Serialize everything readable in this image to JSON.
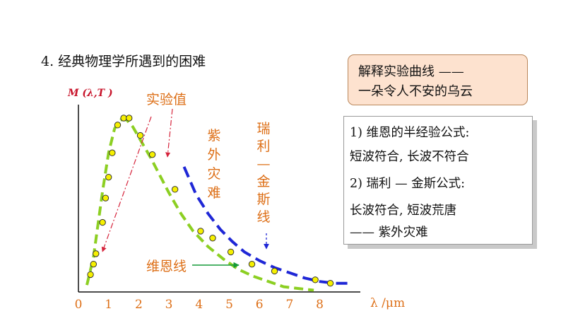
{
  "heading": "4. 经典物理学所遇到的困难",
  "callout": {
    "line1": "解释实验曲线 ——",
    "line2": "一朵令人不安的乌云"
  },
  "info_box": {
    "lines": [
      "1) 维恩的半经验公式:",
      "短波符合, 长波不符合",
      "2) 瑞利 — 金斯公式:",
      "长波符合, 短波荒唐",
      "—— 紫外灾难"
    ]
  },
  "chart_data": {
    "type": "line",
    "ylabel": "M (λ,T )",
    "xlabel": "λ /μm",
    "x_ticks": [
      "0",
      "1",
      "2",
      "3",
      "4",
      "5",
      "6",
      "7",
      "8"
    ],
    "xlim": [
      0,
      9
    ],
    "annotations": {
      "experimental": "实验值",
      "ultraviolet": [
        "紫",
        "外",
        "灾",
        "难"
      ],
      "rayleigh_jeans": [
        "瑞",
        "利",
        "—",
        "金",
        "斯",
        "线"
      ],
      "wien": "维恩线"
    },
    "experimental_points": [
      {
        "x": 0.4,
        "y": 0.1
      },
      {
        "x": 0.5,
        "y": 0.16
      },
      {
        "x": 0.58,
        "y": 0.22
      },
      {
        "x": 0.8,
        "y": 0.4
      },
      {
        "x": 0.9,
        "y": 0.54
      },
      {
        "x": 1.0,
        "y": 0.66
      },
      {
        "x": 1.12,
        "y": 0.8
      },
      {
        "x": 1.3,
        "y": 0.96
      },
      {
        "x": 1.5,
        "y": 1.0
      },
      {
        "x": 1.68,
        "y": 1.0
      },
      {
        "x": 2.05,
        "y": 0.9
      },
      {
        "x": 2.45,
        "y": 0.79
      },
      {
        "x": 3.2,
        "y": 0.59
      },
      {
        "x": 4.05,
        "y": 0.35
      },
      {
        "x": 4.45,
        "y": 0.31
      },
      {
        "x": 5.05,
        "y": 0.23
      },
      {
        "x": 5.75,
        "y": 0.16
      },
      {
        "x": 6.5,
        "y": 0.12
      },
      {
        "x": 7.85,
        "y": 0.07
      },
      {
        "x": 8.35,
        "y": 0.05
      }
    ],
    "series": [
      {
        "name": "维恩线",
        "style": "dashed",
        "color": "#8ccf22",
        "x": [
          0.28,
          0.5,
          0.8,
          1.0,
          1.2,
          1.4,
          1.6,
          1.8,
          2.1,
          2.4,
          2.7,
          3.0,
          3.4,
          3.8,
          4.3,
          4.8,
          5.3,
          5.8,
          6.3,
          6.8,
          7.3,
          7.8
        ],
        "y": [
          0.04,
          0.2,
          0.58,
          0.8,
          0.94,
          0.99,
          0.99,
          0.95,
          0.86,
          0.77,
          0.67,
          0.57,
          0.45,
          0.35,
          0.26,
          0.19,
          0.13,
          0.09,
          0.06,
          0.03,
          0.02,
          0.01
        ]
      },
      {
        "name": "瑞利 — 金斯线",
        "style": "dashed",
        "color": "#1f27d6",
        "x": [
          3.5,
          3.9,
          4.3,
          4.7,
          5.1,
          5.5,
          6.0,
          6.5,
          7.0,
          7.5,
          8.0,
          8.5,
          9.0
        ],
        "y": [
          0.72,
          0.56,
          0.45,
          0.36,
          0.29,
          0.23,
          0.18,
          0.14,
          0.11,
          0.08,
          0.06,
          0.05,
          0.05
        ]
      }
    ],
    "colors": {
      "label_orange": "#dd6f17",
      "arrow_red": "#d6243c",
      "arrow_green": "#159a38",
      "arrow_blue": "#1f27d6",
      "point_fill": "#f6f000"
    }
  }
}
